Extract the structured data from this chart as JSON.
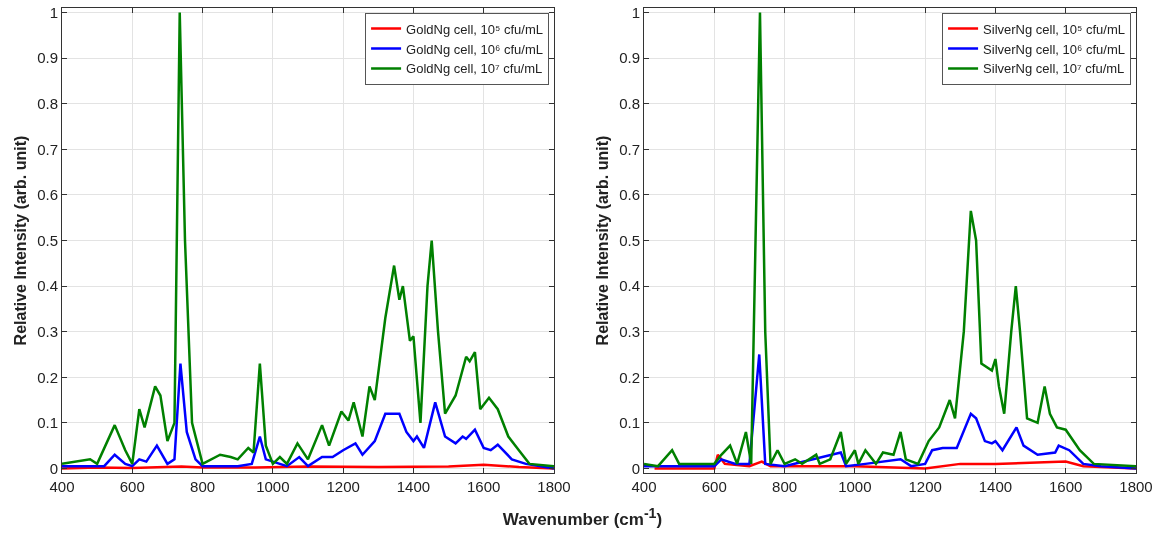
{
  "chart_data": [
    {
      "type": "line",
      "xlabel": "Wavenumber (cm$^{-1}$)",
      "ylabel": "Relative Intensity (arb. unit)",
      "xlim": [
        400,
        1800
      ],
      "ylim": [
        -0.01,
        1.01
      ],
      "xticks": [
        400,
        600,
        800,
        1000,
        1200,
        1400,
        1600,
        1800
      ],
      "yticks": [
        0,
        0.1,
        0.2,
        0.3,
        0.4,
        0.5,
        0.6,
        0.7,
        0.8,
        0.9,
        1
      ],
      "grid": true,
      "legend": "top right",
      "line_style": "solid",
      "series": [
        {
          "name": "GoldNg cell, 10⁵ cfu/mL",
          "color": "#ff0000",
          "x": [
            400,
            500,
            600,
            740,
            800,
            950,
            1100,
            1300,
            1500,
            1600,
            1700,
            1800
          ],
          "values": [
            0.0,
            0.002,
            0.001,
            0.004,
            0.002,
            0.002,
            0.004,
            0.003,
            0.004,
            0.008,
            0.003,
            0.0
          ]
        },
        {
          "name": "GoldNg cell, 10⁶ cfu/mL",
          "color": "#0000ff",
          "x": [
            400,
            520,
            550,
            580,
            600,
            620,
            640,
            670,
            700,
            720,
            737,
            755,
            780,
            800,
            900,
            940,
            963,
            980,
            1040,
            1075,
            1100,
            1140,
            1170,
            1200,
            1235,
            1255,
            1290,
            1320,
            1360,
            1380,
            1400,
            1410,
            1430,
            1462,
            1490,
            1520,
            1540,
            1550,
            1575,
            1600,
            1620,
            1640,
            1680,
            1720,
            1800
          ],
          "values": [
            0.005,
            0.005,
            0.03,
            0.01,
            0.005,
            0.02,
            0.015,
            0.05,
            0.01,
            0.02,
            0.23,
            0.08,
            0.02,
            0.005,
            0.005,
            0.01,
            0.07,
            0.02,
            0.005,
            0.025,
            0.005,
            0.025,
            0.025,
            0.04,
            0.055,
            0.03,
            0.06,
            0.12,
            0.12,
            0.08,
            0.06,
            0.07,
            0.045,
            0.145,
            0.07,
            0.055,
            0.07,
            0.065,
            0.085,
            0.045,
            0.04,
            0.052,
            0.02,
            0.01,
            0.0
          ]
        },
        {
          "name": "GoldNg cell, 10⁷ cfu/mL",
          "color": "#008000",
          "x": [
            400,
            480,
            500,
            550,
            580,
            600,
            620,
            635,
            665,
            680,
            700,
            720,
            735,
            750,
            770,
            800,
            850,
            880,
            900,
            930,
            945,
            963,
            980,
            1000,
            1020,
            1040,
            1070,
            1100,
            1140,
            1160,
            1195,
            1215,
            1230,
            1255,
            1275,
            1290,
            1320,
            1345,
            1360,
            1370,
            1390,
            1400,
            1420,
            1440,
            1452,
            1470,
            1490,
            1520,
            1550,
            1560,
            1575,
            1590,
            1615,
            1640,
            1670,
            1700,
            1730,
            1800
          ],
          "values": [
            0.01,
            0.02,
            0.01,
            0.095,
            0.04,
            0.01,
            0.13,
            0.09,
            0.18,
            0.16,
            0.06,
            0.1,
            1.0,
            0.5,
            0.1,
            0.01,
            0.03,
            0.025,
            0.02,
            0.045,
            0.035,
            0.23,
            0.05,
            0.01,
            0.025,
            0.01,
            0.055,
            0.02,
            0.095,
            0.05,
            0.125,
            0.105,
            0.145,
            0.07,
            0.18,
            0.15,
            0.33,
            0.445,
            0.37,
            0.4,
            0.28,
            0.29,
            0.1,
            0.4,
            0.5,
            0.3,
            0.12,
            0.16,
            0.245,
            0.235,
            0.255,
            0.13,
            0.155,
            0.13,
            0.07,
            0.04,
            0.01,
            0.005
          ]
        }
      ]
    },
    {
      "type": "line",
      "ylabel": "Relative Intensity (arb. unit)",
      "xlim": [
        400,
        1800
      ],
      "ylim": [
        -0.01,
        1.01
      ],
      "xticks": [
        400,
        600,
        800,
        1000,
        1200,
        1400,
        1600,
        1800
      ],
      "yticks": [
        0,
        0.1,
        0.2,
        0.3,
        0.4,
        0.5,
        0.6,
        0.7,
        0.8,
        0.9,
        1
      ],
      "grid": true,
      "legend": "top right",
      "line_style": "solid",
      "series": [
        {
          "name": "SilverNg cell, 10⁵ cfu/mL",
          "color": "#ff0000",
          "x": [
            430,
            600,
            610,
            630,
            700,
            735,
            760,
            1000,
            1200,
            1300,
            1400,
            1600,
            1650,
            1800
          ],
          "values": [
            0.0,
            0.0,
            0.03,
            0.01,
            0.005,
            0.015,
            0.005,
            0.005,
            0.0,
            0.01,
            0.01,
            0.015,
            0.005,
            0.0
          ]
        },
        {
          "name": "SilverNg cell, 10⁶ cfu/mL",
          "color": "#0000ff",
          "x": [
            400,
            600,
            620,
            660,
            700,
            728,
            745,
            800,
            960,
            975,
            1030,
            1130,
            1160,
            1200,
            1220,
            1250,
            1290,
            1330,
            1345,
            1370,
            1390,
            1400,
            1420,
            1460,
            1480,
            1520,
            1570,
            1580,
            1610,
            1650,
            1700,
            1800
          ],
          "values": [
            0.005,
            0.005,
            0.02,
            0.01,
            0.01,
            0.25,
            0.01,
            0.005,
            0.035,
            0.005,
            0.01,
            0.02,
            0.005,
            0.01,
            0.04,
            0.045,
            0.045,
            0.12,
            0.11,
            0.06,
            0.055,
            0.06,
            0.04,
            0.09,
            0.05,
            0.03,
            0.035,
            0.05,
            0.04,
            0.01,
            0.005,
            0.0
          ]
        },
        {
          "name": "SilverNg cell, 10⁷ cfu/mL",
          "color": "#008000",
          "x": [
            400,
            440,
            480,
            500,
            600,
            620,
            645,
            665,
            690,
            705,
            730,
            745,
            760,
            780,
            800,
            830,
            850,
            890,
            900,
            930,
            960,
            975,
            1000,
            1010,
            1030,
            1060,
            1080,
            1110,
            1130,
            1145,
            1180,
            1210,
            1240,
            1270,
            1285,
            1310,
            1330,
            1345,
            1360,
            1390,
            1400,
            1410,
            1425,
            1445,
            1458,
            1470,
            1490,
            1520,
            1540,
            1555,
            1575,
            1600,
            1640,
            1680,
            1800
          ],
          "values": [
            0.01,
            0.005,
            0.04,
            0.01,
            0.01,
            0.03,
            0.05,
            0.01,
            0.08,
            0.01,
            1.0,
            0.3,
            0.01,
            0.04,
            0.01,
            0.02,
            0.01,
            0.03,
            0.01,
            0.02,
            0.08,
            0.01,
            0.04,
            0.01,
            0.04,
            0.01,
            0.035,
            0.03,
            0.08,
            0.02,
            0.01,
            0.06,
            0.09,
            0.15,
            0.11,
            0.3,
            0.565,
            0.5,
            0.23,
            0.215,
            0.24,
            0.18,
            0.12,
            0.3,
            0.4,
            0.3,
            0.11,
            0.1,
            0.18,
            0.12,
            0.09,
            0.085,
            0.04,
            0.01,
            0.005
          ]
        }
      ]
    }
  ]
}
